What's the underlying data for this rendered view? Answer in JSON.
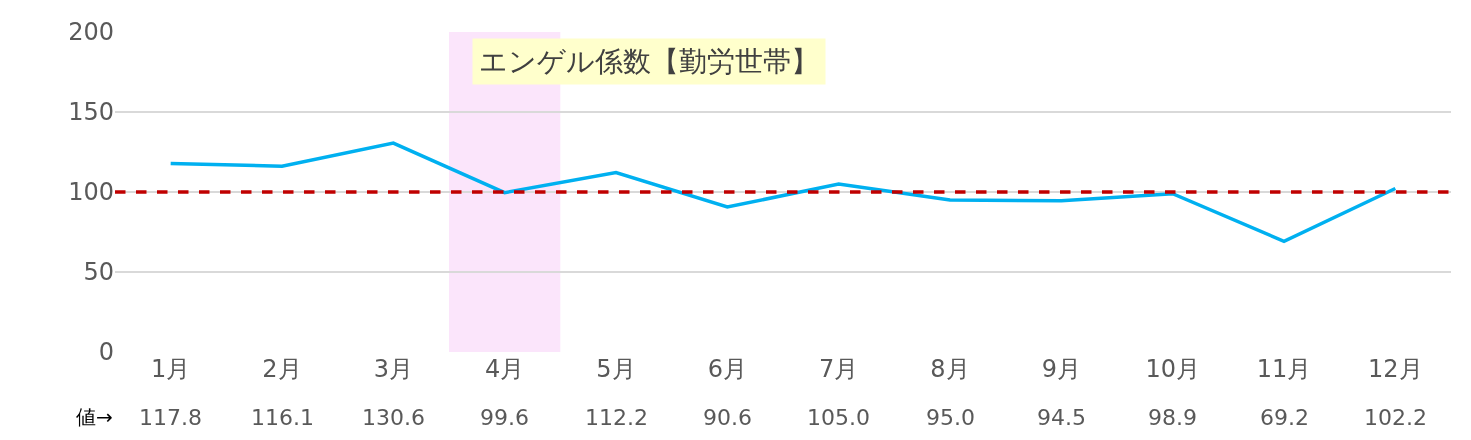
{
  "chart_data": {
    "type": "line",
    "title": "エンゲル係数【勤労世帯】",
    "categories": [
      "1月",
      "2月",
      "3月",
      "4月",
      "5月",
      "6月",
      "7月",
      "8月",
      "9月",
      "10月",
      "11月",
      "12月"
    ],
    "series": [
      {
        "color": "#00b0f0",
        "values": [
          117.8,
          116.1,
          130.6,
          99.6,
          112.2,
          90.6,
          105.0,
          95.0,
          94.5,
          98.9,
          69.2,
          102.2
        ],
        "value_labels": [
          "117.8",
          "116.1",
          "130.6",
          "99.6",
          "112.2",
          "90.6",
          "105.0",
          "95.0",
          "94.5",
          "98.9",
          "69.2",
          "102.2"
        ]
      }
    ],
    "ylim": [
      0,
      200
    ],
    "yticks": [
      0,
      50,
      100,
      150,
      200
    ],
    "grid": "y",
    "marker": "none",
    "line_style": "solid",
    "ref_lines": [
      {
        "axis": "y",
        "value": 100,
        "color": "#c00000",
        "line_style": "dashed"
      }
    ],
    "bands": [
      {
        "axis": "x",
        "from": "4月",
        "to": "4月",
        "color": "#fbe5fb"
      }
    ],
    "annotations": [
      "値→"
    ]
  }
}
